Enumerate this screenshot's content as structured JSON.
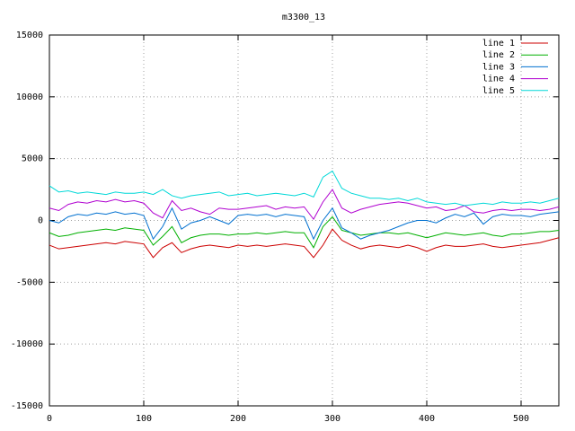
{
  "chart_data": {
    "type": "line",
    "title": "m3300_13",
    "x": [
      0,
      10,
      20,
      30,
      40,
      50,
      60,
      70,
      80,
      90,
      100,
      110,
      120,
      130,
      140,
      150,
      160,
      170,
      180,
      190,
      200,
      210,
      220,
      230,
      240,
      250,
      260,
      270,
      280,
      290,
      300,
      310,
      320,
      330,
      340,
      350,
      360,
      370,
      380,
      390,
      400,
      410,
      420,
      430,
      440,
      450,
      460,
      470,
      480,
      490,
      500,
      510,
      520,
      530,
      540
    ],
    "series": [
      {
        "name": "line 1",
        "color": "#cc0000",
        "values": [
          -2000,
          -2300,
          -2200,
          -2100,
          -2000,
          -1900,
          -1800,
          -1900,
          -1700,
          -1800,
          -1900,
          -3000,
          -2200,
          -1800,
          -2600,
          -2300,
          -2100,
          -2000,
          -2100,
          -2200,
          -2000,
          -2100,
          -2000,
          -2100,
          -2000,
          -1900,
          -2000,
          -2100,
          -3000,
          -2000,
          -700,
          -1600,
          -2000,
          -2300,
          -2100,
          -2000,
          -2100,
          -2200,
          -2000,
          -2200,
          -2500,
          -2200,
          -2000,
          -2100,
          -2100,
          -2000,
          -1900,
          -2100,
          -2200,
          -2100,
          -2000,
          -1900,
          -1800,
          -1600,
          -1400
        ]
      },
      {
        "name": "line 2",
        "color": "#00b000",
        "values": [
          -1000,
          -1300,
          -1200,
          -1000,
          -900,
          -800,
          -700,
          -800,
          -600,
          -700,
          -800,
          -2000,
          -1300,
          -500,
          -1800,
          -1400,
          -1200,
          -1100,
          -1100,
          -1200,
          -1100,
          -1100,
          -1000,
          -1100,
          -1000,
          -900,
          -1000,
          -1000,
          -2200,
          -500,
          300,
          -800,
          -1000,
          -1200,
          -1100,
          -1000,
          -1000,
          -1100,
          -1000,
          -1200,
          -1400,
          -1200,
          -1000,
          -1100,
          -1200,
          -1100,
          -1000,
          -1200,
          -1300,
          -1100,
          -1100,
          -1000,
          -900,
          -900,
          -800
        ]
      },
      {
        "name": "line 3",
        "color": "#0070d0",
        "values": [
          0,
          -200,
          300,
          500,
          400,
          600,
          500,
          700,
          500,
          600,
          400,
          -1500,
          -500,
          1000,
          -700,
          -200,
          0,
          300,
          0,
          -300,
          400,
          500,
          400,
          500,
          300,
          500,
          400,
          300,
          -1500,
          0,
          1000,
          -600,
          -1000,
          -1500,
          -1200,
          -1000,
          -800,
          -500,
          -200,
          0,
          0,
          -200,
          200,
          500,
          300,
          600,
          -300,
          300,
          500,
          400,
          400,
          300,
          500,
          600,
          700
        ]
      },
      {
        "name": "line 4",
        "color": "#b000d0",
        "values": [
          1000,
          800,
          1300,
          1500,
          1400,
          1600,
          1500,
          1700,
          1500,
          1600,
          1400,
          600,
          200,
          1600,
          800,
          1000,
          700,
          500,
          1000,
          900,
          900,
          1000,
          1100,
          1200,
          900,
          1100,
          1000,
          1100,
          100,
          1500,
          2500,
          1000,
          600,
          900,
          1100,
          1300,
          1400,
          1500,
          1400,
          1200,
          1000,
          1100,
          800,
          900,
          1200,
          700,
          600,
          800,
          900,
          800,
          900,
          900,
          800,
          900,
          1100
        ]
      },
      {
        "name": "line 5",
        "color": "#00d8d8",
        "values": [
          2800,
          2300,
          2400,
          2200,
          2300,
          2200,
          2100,
          2300,
          2200,
          2200,
          2300,
          2100,
          2500,
          2000,
          1800,
          2000,
          2100,
          2200,
          2300,
          2000,
          2100,
          2200,
          2000,
          2100,
          2200,
          2100,
          2000,
          2200,
          1900,
          3500,
          4000,
          2600,
          2200,
          2000,
          1800,
          1800,
          1700,
          1800,
          1600,
          1800,
          1500,
          1400,
          1300,
          1400,
          1200,
          1300,
          1400,
          1300,
          1500,
          1400,
          1400,
          1500,
          1400,
          1600,
          1800
        ]
      }
    ],
    "xlim": [
      0,
      540
    ],
    "xticks": [
      0,
      100,
      200,
      300,
      400,
      500
    ],
    "ylim": [
      -15000,
      15000
    ],
    "yticks": [
      -15000,
      -10000,
      -5000,
      0,
      5000,
      10000,
      15000
    ],
    "grid": true,
    "legend": "top-right"
  }
}
